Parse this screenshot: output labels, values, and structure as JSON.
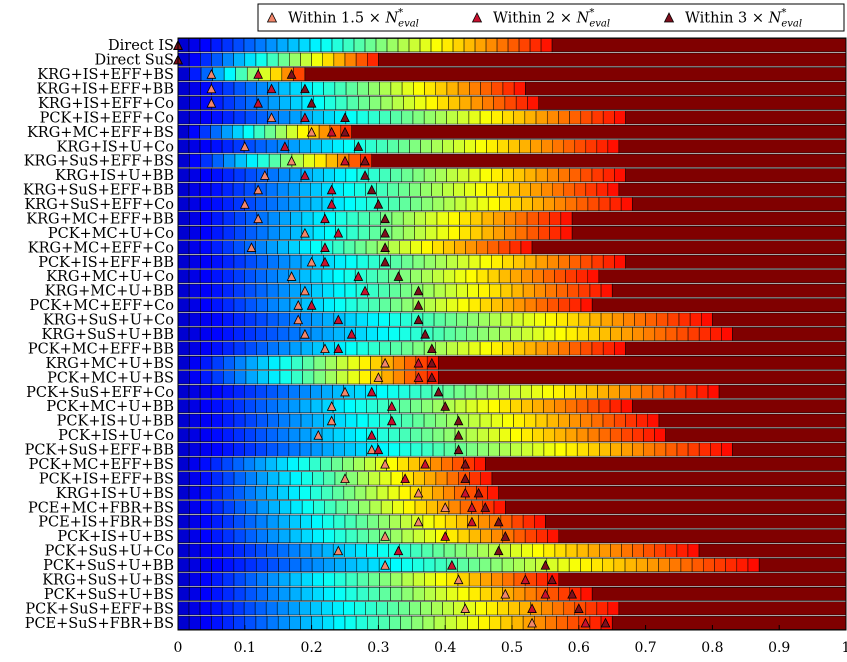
{
  "chart_data": {
    "type": "bar",
    "orientation": "horizontal-stacked",
    "legend": {
      "placement": "top-right",
      "entries": [
        {
          "prefix": "Within 1.5 × ",
          "sym": "N",
          "sup": "*",
          "sub": "eval",
          "color": "#f2866b"
        },
        {
          "prefix": "Within 2 × ",
          "sym": "N",
          "sup": "*",
          "sub": "eval",
          "color": "#c8102e"
        },
        {
          "prefix": "Within 3 × ",
          "sym": "N",
          "sup": "*",
          "sub": "eval",
          "color": "#7d0f1c"
        }
      ]
    },
    "xlim": [
      0,
      1
    ],
    "xticks": [
      "0",
      "0.1",
      "0.2",
      "0.3",
      "0.4",
      "0.5",
      "0.6",
      "0.7",
      "0.8",
      "0.9",
      "1"
    ],
    "grid": false,
    "colormap": "jet",
    "rows": [
      {
        "label": "Direct IS",
        "end": 0.56,
        "m": [
          0,
          0,
          0
        ]
      },
      {
        "label": "Direct SuS",
        "end": 0.3,
        "m": [
          0,
          0,
          0
        ]
      },
      {
        "label": "KRG+IS+EFF+BS",
        "end": 0.19,
        "m": [
          0.05,
          0.12,
          0.17
        ]
      },
      {
        "label": "KRG+IS+EFF+BB",
        "end": 0.52,
        "m": [
          0.05,
          0.14,
          0.19
        ]
      },
      {
        "label": "KRG+IS+EFF+Co",
        "end": 0.54,
        "m": [
          0.05,
          0.12,
          0.2
        ]
      },
      {
        "label": "PCK+IS+EFF+Co",
        "end": 0.67,
        "m": [
          0.14,
          0.19,
          0.25
        ]
      },
      {
        "label": "KRG+MC+EFF+BS",
        "end": 0.26,
        "m": [
          0.2,
          0.23,
          0.25
        ]
      },
      {
        "label": "KRG+IS+U+Co",
        "end": 0.66,
        "m": [
          0.1,
          0.16,
          0.27
        ]
      },
      {
        "label": "KRG+SuS+EFF+BS",
        "end": 0.29,
        "m": [
          0.17,
          0.25,
          0.28
        ]
      },
      {
        "label": "KRG+IS+U+BB",
        "end": 0.67,
        "m": [
          0.13,
          0.19,
          0.28
        ]
      },
      {
        "label": "KRG+SuS+EFF+BB",
        "end": 0.66,
        "m": [
          0.12,
          0.23,
          0.29
        ]
      },
      {
        "label": "KRG+SuS+EFF+Co",
        "end": 0.68,
        "m": [
          0.1,
          0.23,
          0.3
        ]
      },
      {
        "label": "KRG+MC+EFF+BB",
        "end": 0.59,
        "m": [
          0.12,
          0.22,
          0.31
        ]
      },
      {
        "label": "PCK+MC+U+Co",
        "end": 0.59,
        "m": [
          0.19,
          0.24,
          0.31
        ]
      },
      {
        "label": "KRG+MC+EFF+Co",
        "end": 0.53,
        "m": [
          0.11,
          0.22,
          0.31
        ]
      },
      {
        "label": "PCK+IS+EFF+BB",
        "end": 0.67,
        "m": [
          0.2,
          0.22,
          0.31
        ]
      },
      {
        "label": "KRG+MC+U+Co",
        "end": 0.63,
        "m": [
          0.17,
          0.27,
          0.33
        ]
      },
      {
        "label": "KRG+MC+U+BB",
        "end": 0.65,
        "m": [
          0.19,
          0.28,
          0.36
        ]
      },
      {
        "label": "PCK+MC+EFF+Co",
        "end": 0.62,
        "m": [
          0.18,
          0.2,
          0.36
        ]
      },
      {
        "label": "KRG+SuS+U+Co",
        "end": 0.8,
        "m": [
          0.18,
          0.24,
          0.36
        ]
      },
      {
        "label": "KRG+SuS+U+BB",
        "end": 0.83,
        "m": [
          0.19,
          0.26,
          0.37
        ]
      },
      {
        "label": "PCK+MC+EFF+BB",
        "end": 0.67,
        "m": [
          0.22,
          0.24,
          0.38
        ]
      },
      {
        "label": "KRG+MC+U+BS",
        "end": 0.39,
        "m": [
          0.31,
          0.36,
          0.38
        ]
      },
      {
        "label": "PCK+MC+U+BS",
        "end": 0.39,
        "m": [
          0.3,
          0.36,
          0.38
        ]
      },
      {
        "label": "PCK+SuS+EFF+Co",
        "end": 0.81,
        "m": [
          0.25,
          0.29,
          0.39
        ]
      },
      {
        "label": "PCK+MC+U+BB",
        "end": 0.68,
        "m": [
          0.23,
          0.32,
          0.4
        ]
      },
      {
        "label": "PCK+IS+U+BB",
        "end": 0.72,
        "m": [
          0.23,
          0.32,
          0.42
        ]
      },
      {
        "label": "PCK+IS+U+Co",
        "end": 0.73,
        "m": [
          0.21,
          0.29,
          0.42
        ]
      },
      {
        "label": "PCK+SuS+EFF+BB",
        "end": 0.83,
        "m": [
          0.29,
          0.3,
          0.42
        ]
      },
      {
        "label": "PCK+MC+EFF+BS",
        "end": 0.46,
        "m": [
          0.31,
          0.37,
          0.43
        ]
      },
      {
        "label": "PCK+IS+EFF+BS",
        "end": 0.47,
        "m": [
          0.25,
          0.34,
          0.43
        ]
      },
      {
        "label": "KRG+IS+U+BS",
        "end": 0.48,
        "m": [
          0.36,
          0.43,
          0.45
        ]
      },
      {
        "label": "PCE+MC+FBR+BS",
        "end": 0.49,
        "m": [
          0.4,
          0.44,
          0.46
        ]
      },
      {
        "label": "PCE+IS+FBR+BS",
        "end": 0.55,
        "m": [
          0.36,
          0.44,
          0.48
        ]
      },
      {
        "label": "PCK+IS+U+BS",
        "end": 0.57,
        "m": [
          0.31,
          0.4,
          0.49
        ]
      },
      {
        "label": "PCK+SuS+U+Co",
        "end": 0.78,
        "m": [
          0.24,
          0.33,
          0.48
        ]
      },
      {
        "label": "PCK+SuS+U+BB",
        "end": 0.87,
        "m": [
          0.31,
          0.41,
          0.55
        ]
      },
      {
        "label": "KRG+SuS+U+BS",
        "end": 0.57,
        "m": [
          0.42,
          0.52,
          0.56
        ]
      },
      {
        "label": "PCK+SuS+U+BS",
        "end": 0.62,
        "m": [
          0.49,
          0.55,
          0.59
        ]
      },
      {
        "label": "PCK+SuS+EFF+BS",
        "end": 0.66,
        "m": [
          0.43,
          0.53,
          0.6
        ]
      },
      {
        "label": "PCE+SuS+FBR+BS",
        "end": 0.65,
        "m": [
          0.53,
          0.61,
          0.64
        ]
      }
    ]
  }
}
